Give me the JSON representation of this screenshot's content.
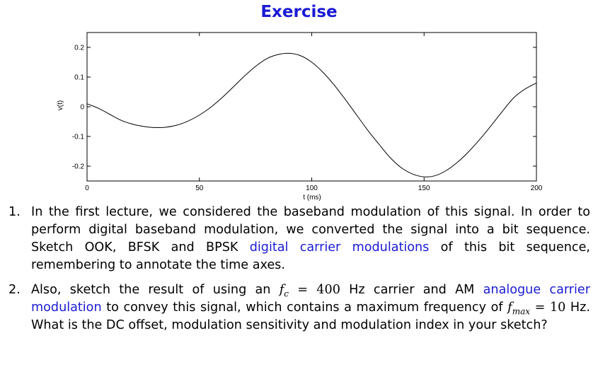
{
  "title": "Exercise",
  "chart_data": {
    "type": "line",
    "xlabel": "t (ms)",
    "ylabel": "v(t)",
    "xlim": [
      0,
      200
    ],
    "ylim": [
      -0.25,
      0.25
    ],
    "xticks": [
      0,
      50,
      100,
      150,
      200
    ],
    "xtick_labels": [
      "0",
      "50",
      "100",
      "150",
      "200"
    ],
    "yticks": [
      0.2,
      0.1,
      0,
      -0.1,
      -0.2
    ],
    "ytick_labels": [
      "0.2",
      "0.1",
      "0",
      "-0.1",
      "-0.2"
    ],
    "grid": false,
    "series": [
      {
        "color": "#000000",
        "x": [
          0,
          5,
          10,
          15,
          20,
          25,
          30,
          35,
          40,
          45,
          50,
          55,
          60,
          65,
          70,
          75,
          80,
          85,
          90,
          95,
          100,
          105,
          110,
          115,
          120,
          125,
          130,
          135,
          140,
          145,
          150,
          155,
          160,
          165,
          170,
          175,
          180,
          185,
          190,
          195,
          200
        ],
        "y": [
          0.01,
          -0.005,
          -0.025,
          -0.045,
          -0.058,
          -0.066,
          -0.07,
          -0.069,
          -0.062,
          -0.048,
          -0.028,
          -0.002,
          0.03,
          0.066,
          0.103,
          0.136,
          0.162,
          0.176,
          0.18,
          0.172,
          0.15,
          0.116,
          0.073,
          0.024,
          -0.028,
          -0.08,
          -0.127,
          -0.172,
          -0.206,
          -0.227,
          -0.236,
          -0.232,
          -0.214,
          -0.186,
          -0.15,
          -0.108,
          -0.062,
          -0.014,
          0.031,
          0.06,
          0.08
        ]
      }
    ]
  },
  "questions": [
    {
      "number": "1.",
      "text_before": "In the first lecture, we considered the baseband modulation of this signal.  In order to perform digital baseband modulation, we converted the signal into a bit sequence.  Sketch OOK, BFSK and BPSK ",
      "link": "digital carrier modulations",
      "text_after": " of this bit sequence, remembering to annotate the time axes."
    },
    {
      "number": "2.",
      "text_1": "Also, sketch the result of using an ",
      "fc_symbol": "f",
      "fc_sub": "c",
      "fc_eq": " = 400",
      "text_2": " Hz carrier and AM ",
      "link": "analogue carrier modulation",
      "text_3": " to convey this signal, which contains a maximum frequency of ",
      "fmax_symbol": "f",
      "fmax_sub": "max",
      "fmax_eq": " = 10",
      "text_4": " Hz.  What is the DC offset, modulation sensitivity and modulation index in your sketch?"
    }
  ]
}
